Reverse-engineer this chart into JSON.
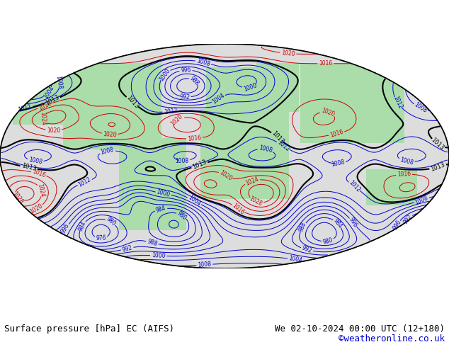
{
  "title_left": "Surface pressure [hPa] EC (AIFS)",
  "title_right": "We 02-10-2024 00:00 UTC (12+180)",
  "credit": "©weatheronline.co.uk",
  "bg_color": "#ffffff",
  "map_bg": "#cccccc",
  "land_color": "#aaddaa",
  "ocean_color": "#ffffff",
  "contour_black_color": "#000000",
  "contour_red_color": "#cc0000",
  "contour_blue_color": "#0000cc",
  "label_fontsize": 9,
  "footer_fontsize": 9,
  "credit_color": "#0000cc"
}
